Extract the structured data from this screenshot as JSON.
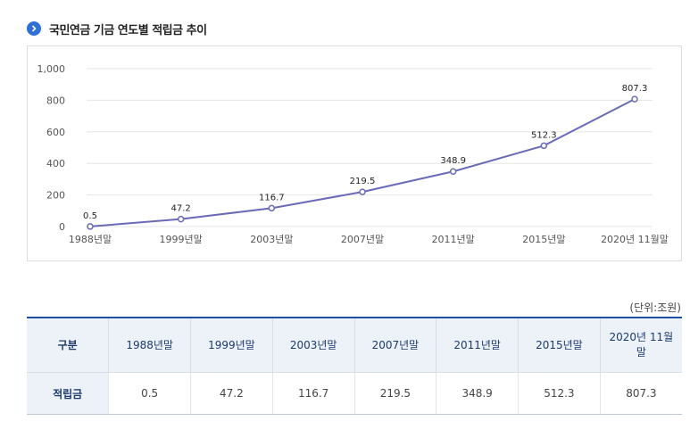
{
  "page": {
    "title": "국민연금 기금 연도별 적립금 추이",
    "unit": "(단위:조원)"
  },
  "colors": {
    "accent": "#2f6fd6",
    "line": "#6a6ab8",
    "table_header_bg": "#edf2f8",
    "table_top_border": "#1f4fa5"
  },
  "chart_data": {
    "type": "line",
    "categories": [
      "1988년말",
      "1999년말",
      "2003년말",
      "2007년말",
      "2011년말",
      "2015년말",
      "2020년 11월말"
    ],
    "series": [
      {
        "values": [
          0.5,
          47.2,
          116.7,
          219.5,
          348.9,
          512.3,
          807.3
        ]
      }
    ],
    "data_labels": [
      "0.5",
      "47.2",
      "116.7",
      "219.5",
      "348.9",
      "512.3",
      "807.3"
    ],
    "y_ticks": [
      0,
      200,
      400,
      600,
      800,
      1000
    ],
    "y_tick_labels": [
      "0",
      "200",
      "400",
      "600",
      "800",
      "1,000"
    ],
    "ylim": [
      0,
      1000
    ],
    "grid": true,
    "legend": "none"
  },
  "table": {
    "row_header": "구분",
    "columns": [
      "1988년말",
      "1999년말",
      "2003년말",
      "2007년말",
      "2011년말",
      "2015년말",
      "2020년 11월말"
    ],
    "row_label": "적립금",
    "values": [
      "0.5",
      "47.2",
      "116.7",
      "219.5",
      "348.9",
      "512.3",
      "807.3"
    ]
  }
}
